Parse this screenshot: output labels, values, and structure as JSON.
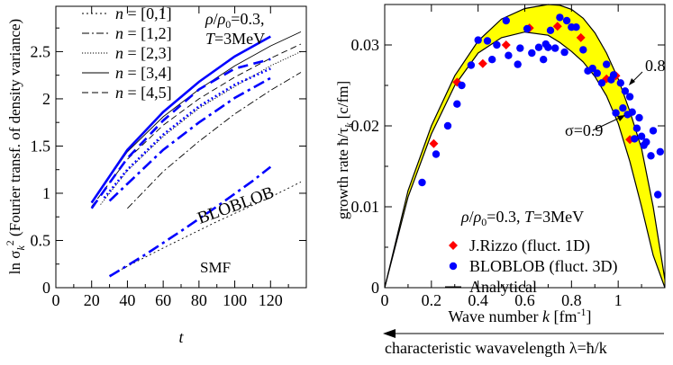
{
  "chart_data": [
    {
      "type": "line",
      "panel": "left",
      "xlabel": "t",
      "ylabel": "ln σk² (Fourier transf. of density variance)",
      "ylabel_parts": {
        "pre": "ln σ",
        "sub": "k",
        "sup": "2",
        "post": " (Fourier transf. of density variance)"
      },
      "xlim": [
        0,
        140
      ],
      "ylim": [
        0,
        2.98
      ],
      "xticks": [
        "0",
        "20",
        "40",
        "60",
        "80",
        "100",
        "120"
      ],
      "xtick_values": [
        0,
        20,
        40,
        60,
        80,
        100,
        120
      ],
      "yticks": [
        "0",
        "0.5",
        "1",
        "1.5",
        "2",
        "2.5"
      ],
      "ytick_values": [
        0,
        0.5,
        1,
        1.5,
        2,
        2.5
      ],
      "legend": [
        {
          "label": "n = [0,1]",
          "style": "dotted"
        },
        {
          "label": "n = [1,2]",
          "style": "dashdot"
        },
        {
          "label": "n = [2,3]",
          "style": "dense-dot"
        },
        {
          "label": "n = [3,4]",
          "style": "solid"
        },
        {
          "label": "n = [4,5]",
          "style": "dashed"
        }
      ],
      "annotation": {
        "line1": "ρ/ρ0=0.3,",
        "line2": "T=3MeV"
      },
      "labels": {
        "bloblob": "BLOBLOB",
        "smf": "SMF"
      },
      "series": [
        {
          "name": "SMF n=[3,4]",
          "group": "SMF",
          "style": "solid",
          "x": [
            20,
            40,
            60,
            80,
            100,
            120,
            137
          ],
          "y": [
            0.9,
            1.44,
            1.81,
            2.1,
            2.35,
            2.56,
            2.71
          ]
        },
        {
          "name": "SMF n=[4,5]",
          "group": "SMF",
          "style": "dashed",
          "x": [
            20,
            40,
            60,
            80,
            100,
            120,
            137
          ],
          "y": [
            0.86,
            1.36,
            1.72,
            2.0,
            2.23,
            2.43,
            2.58
          ]
        },
        {
          "name": "SMF n=[2,3]",
          "group": "SMF",
          "style": "dense-dot",
          "x": [
            25,
            40,
            60,
            80,
            100,
            120,
            137
          ],
          "y": [
            0.88,
            1.24,
            1.6,
            1.9,
            2.13,
            2.35,
            2.5
          ]
        },
        {
          "name": "SMF n=[1,2]",
          "group": "SMF",
          "style": "dashdot",
          "x": [
            40,
            60,
            80,
            100,
            120,
            137
          ],
          "y": [
            0.84,
            1.23,
            1.55,
            1.84,
            2.09,
            2.28
          ]
        },
        {
          "name": "SMF n=[0,1]",
          "group": "SMF",
          "style": "dotted",
          "x": [
            30,
            60,
            90,
            120,
            137
          ],
          "y": [
            0.13,
            0.42,
            0.7,
            0.96,
            1.12
          ]
        },
        {
          "name": "BLOBLOB n=[3,4]",
          "group": "BLOBLOB",
          "style": "solid",
          "x": [
            20,
            30,
            40,
            60,
            80,
            100,
            120
          ],
          "y": [
            0.9,
            1.18,
            1.46,
            1.86,
            2.18,
            2.45,
            2.66
          ]
        },
        {
          "name": "BLOBLOB n=[4,5]",
          "group": "BLOBLOB",
          "style": "dashed",
          "x": [
            20,
            30,
            40,
            60,
            80,
            100,
            120
          ],
          "y": [
            0.84,
            1.11,
            1.37,
            1.77,
            2.1,
            2.32,
            2.42
          ]
        },
        {
          "name": "BLOBLOB n=[2,3]",
          "group": "BLOBLOB",
          "style": "dense-dot",
          "x": [
            27,
            40,
            60,
            80,
            100,
            120
          ],
          "y": [
            0.95,
            1.25,
            1.62,
            1.92,
            2.15,
            2.32
          ]
        },
        {
          "name": "BLOBLOB n=[1,2]",
          "group": "BLOBLOB",
          "style": "dashdot",
          "x": [
            30,
            40,
            60,
            80,
            100,
            120
          ],
          "y": [
            0.92,
            1.1,
            1.46,
            1.75,
            2.01,
            2.22
          ]
        },
        {
          "name": "BLOBLOB n=[0,1]",
          "group": "BLOBLOB",
          "style": "dashdot",
          "x": [
            30,
            50,
            70,
            90,
            110,
            120
          ],
          "y": [
            0.12,
            0.35,
            0.6,
            0.86,
            1.13,
            1.28
          ]
        }
      ]
    },
    {
      "type": "scatter",
      "panel": "right",
      "xlabel": "Wave number k [fm⁻¹]",
      "xlabel_parts": {
        "pre": "Wave number ",
        "italic": "k",
        "post": " [fm",
        "sup": "-1",
        "close": "]"
      },
      "ylabel": "growth rate ħ/τk [c/fm]",
      "ylabel_parts": {
        "pre": "growth rate ħ/τ",
        "sub": "k",
        "post": " [c/fm]"
      },
      "xlim": [
        0,
        1.2
      ],
      "ylim": [
        0,
        0.035
      ],
      "xticks": [
        "0",
        "0.2",
        "0.4",
        "0.6",
        "0.8",
        "1"
      ],
      "xtick_values": [
        0,
        0.2,
        0.4,
        0.6,
        0.8,
        1.0
      ],
      "yticks": [
        "0",
        "0.01",
        "0.02",
        "0.03"
      ],
      "ytick_values": [
        0,
        0.01,
        0.02,
        0.03
      ],
      "bottom_caption": "characteristic wavavelength λ=ħ/k",
      "annotation": {
        "line1": "ρ/ρ0=0.3, T=3MeV"
      },
      "sigma_labels": {
        "sigma09": "σ=0.9",
        "sigma08": "0.8"
      },
      "legend": [
        {
          "label": "J.Rizzo (fluct. 1D)",
          "marker": "red-diamond"
        },
        {
          "label": "BLOBLOB (fluct. 3D)",
          "marker": "blue-circle"
        },
        {
          "label": "Analytical",
          "marker": "line"
        }
      ],
      "band": {
        "name": "Analytical",
        "fill_color": "#ffff00",
        "upper": {
          "x": [
            0,
            0.1,
            0.2,
            0.3,
            0.4,
            0.5,
            0.6,
            0.7,
            0.75,
            0.8,
            0.85,
            0.9,
            0.95,
            1.0,
            1.05,
            1.1,
            1.15,
            1.2
          ],
          "y": [
            0,
            0.012,
            0.02,
            0.0262,
            0.0305,
            0.0332,
            0.0345,
            0.035,
            0.0349,
            0.0344,
            0.0333,
            0.0315,
            0.029,
            0.0258,
            0.0218,
            0.0172,
            0.01,
            0.001
          ]
        },
        "lower": {
          "x": [
            0,
            0.1,
            0.2,
            0.3,
            0.4,
            0.5,
            0.6,
            0.7,
            0.75,
            0.8,
            0.85,
            0.9,
            0.95,
            1.0,
            1.05,
            1.1,
            1.15,
            1.2
          ],
          "y": [
            0,
            0.0112,
            0.019,
            0.025,
            0.029,
            0.0309,
            0.0316,
            0.0312,
            0.0303,
            0.0292,
            0.0279,
            0.0261,
            0.0237,
            0.0203,
            0.0156,
            0.01,
            0.004,
            0.0
          ]
        }
      },
      "series": [
        {
          "name": "J.Rizzo (fluct. 1D)",
          "marker": "red-diamond",
          "color": "#ff0000",
          "x": [
            0.21,
            0.31,
            0.42,
            0.52,
            0.62,
            0.74,
            0.84,
            0.95,
            0.99,
            1.05
          ],
          "y": [
            0.0178,
            0.0254,
            0.0277,
            0.03,
            0.0321,
            0.0323,
            0.0309,
            0.0258,
            0.0262,
            0.0183
          ]
        },
        {
          "name": "BLOBLOB (fluct. 3D)",
          "marker": "blue-circle",
          "color": "#0000ff",
          "x": [
            0.16,
            0.22,
            0.27,
            0.31,
            0.33,
            0.37,
            0.4,
            0.44,
            0.46,
            0.48,
            0.52,
            0.53,
            0.57,
            0.58,
            0.61,
            0.63,
            0.66,
            0.68,
            0.69,
            0.7,
            0.71,
            0.73,
            0.75,
            0.77,
            0.78,
            0.8,
            0.82,
            0.85,
            0.87,
            0.89,
            0.91,
            0.93,
            0.95,
            0.97,
            0.98,
            0.99,
            1.01,
            1.02,
            1.03,
            1.04,
            1.05,
            1.06,
            1.07,
            1.08,
            1.09,
            1.1,
            1.11,
            1.12,
            1.14,
            1.15,
            1.17,
            1.18
          ],
          "y": [
            0.013,
            0.0165,
            0.02,
            0.0227,
            0.025,
            0.0275,
            0.0306,
            0.0305,
            0.0282,
            0.03,
            0.033,
            0.0287,
            0.0276,
            0.0296,
            0.032,
            0.029,
            0.0297,
            0.0282,
            0.0301,
            0.0297,
            0.0318,
            0.0296,
            0.0334,
            0.0291,
            0.033,
            0.0322,
            0.0322,
            0.0294,
            0.0268,
            0.0271,
            0.0265,
            0.0253,
            0.0276,
            0.0257,
            0.0263,
            0.0216,
            0.0253,
            0.0222,
            0.0243,
            0.0214,
            0.0236,
            0.0217,
            0.0184,
            0.0197,
            0.021,
            0.0187,
            0.0176,
            0.018,
            0.0163,
            0.0194,
            0.0115,
            0.0168
          ]
        }
      ]
    }
  ]
}
